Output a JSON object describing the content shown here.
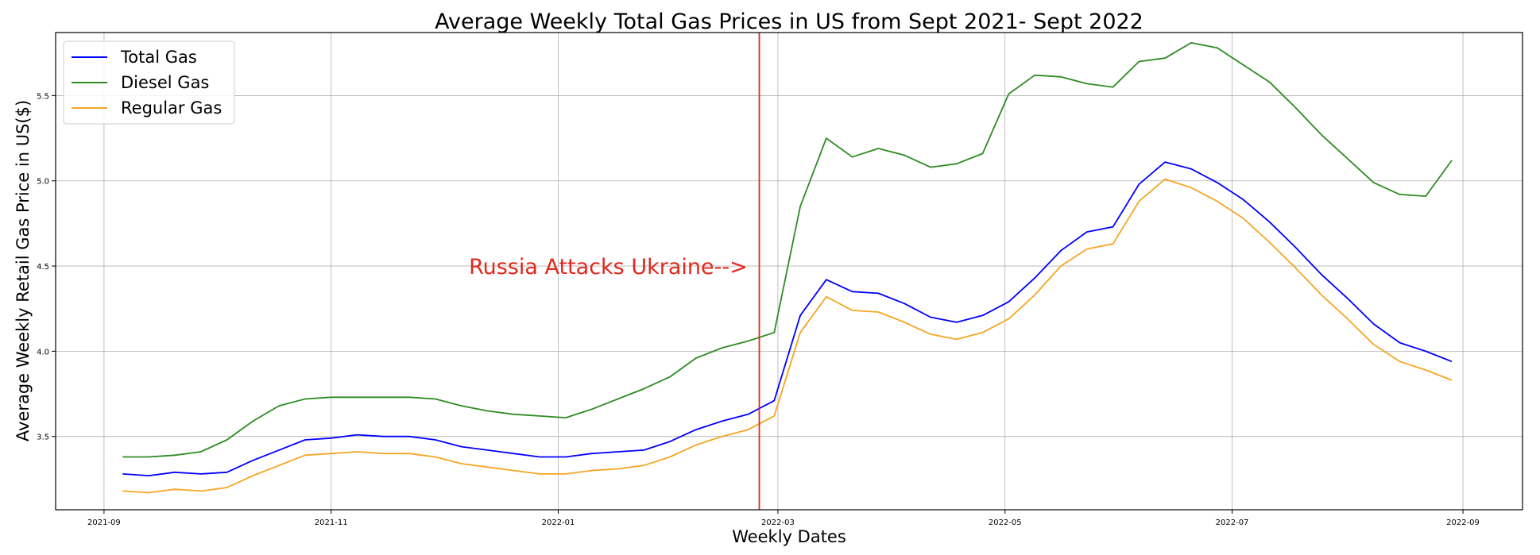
{
  "chart_data": {
    "type": "line",
    "title": "Average Weekly Total Gas Prices in US from Sept 2021- Sept 2022",
    "xlabel": "Weekly Dates",
    "ylabel": "Average Weekly Retail Gas Price in US($)",
    "x_ticks": [
      "2021-09",
      "2021-11",
      "2022-01",
      "2022-03",
      "2022-05",
      "2022-07",
      "2022-09"
    ],
    "y_ticks": [
      "3.5",
      "4.0",
      "4.5",
      "5.0",
      "5.5"
    ],
    "xlim": [
      "2021-08-19",
      "2022-09-17"
    ],
    "ylim": [
      3.07,
      5.87
    ],
    "grid": true,
    "legend_position": "upper left",
    "x": [
      "2021-09-06",
      "2021-09-13",
      "2021-09-20",
      "2021-09-27",
      "2021-10-04",
      "2021-10-11",
      "2021-10-18",
      "2021-10-25",
      "2021-11-01",
      "2021-11-08",
      "2021-11-15",
      "2021-11-22",
      "2021-11-29",
      "2021-12-06",
      "2021-12-13",
      "2021-12-20",
      "2021-12-27",
      "2022-01-03",
      "2022-01-10",
      "2022-01-17",
      "2022-01-24",
      "2022-01-31",
      "2022-02-07",
      "2022-02-14",
      "2022-02-21",
      "2022-02-28",
      "2022-03-07",
      "2022-03-14",
      "2022-03-21",
      "2022-03-28",
      "2022-04-04",
      "2022-04-11",
      "2022-04-18",
      "2022-04-25",
      "2022-05-02",
      "2022-05-09",
      "2022-05-16",
      "2022-05-23",
      "2022-05-30",
      "2022-06-06",
      "2022-06-13",
      "2022-06-20",
      "2022-06-27",
      "2022-07-04",
      "2022-07-11",
      "2022-07-18",
      "2022-07-25",
      "2022-08-01",
      "2022-08-08",
      "2022-08-15",
      "2022-08-22",
      "2022-08-29"
    ],
    "series": [
      {
        "name": "Total Gas",
        "color": "#0000ff",
        "values": [
          3.28,
          3.27,
          3.29,
          3.28,
          3.29,
          3.36,
          3.42,
          3.48,
          3.49,
          3.51,
          3.5,
          3.5,
          3.48,
          3.44,
          3.42,
          3.4,
          3.38,
          3.38,
          3.4,
          3.41,
          3.42,
          3.47,
          3.54,
          3.59,
          3.63,
          3.71,
          4.21,
          4.42,
          4.35,
          4.34,
          4.28,
          4.2,
          4.17,
          4.21,
          4.29,
          4.43,
          4.59,
          4.7,
          4.73,
          4.98,
          5.11,
          5.07,
          4.99,
          4.89,
          4.76,
          4.61,
          4.45,
          4.31,
          4.16,
          4.05,
          4.0,
          3.94
        ]
      },
      {
        "name": "Diesel Gas",
        "color": "#2e8b22",
        "values": [
          3.38,
          3.38,
          3.39,
          3.41,
          3.48,
          3.59,
          3.68,
          3.72,
          3.73,
          3.73,
          3.73,
          3.73,
          3.72,
          3.68,
          3.65,
          3.63,
          3.62,
          3.61,
          3.66,
          3.72,
          3.78,
          3.85,
          3.96,
          4.02,
          4.06,
          4.11,
          4.85,
          5.25,
          5.14,
          5.19,
          5.15,
          5.08,
          5.1,
          5.16,
          5.51,
          5.62,
          5.61,
          5.57,
          5.55,
          5.7,
          5.72,
          5.81,
          5.78,
          5.68,
          5.58,
          5.43,
          5.27,
          5.13,
          4.99,
          4.92,
          4.91,
          5.12
        ]
      },
      {
        "name": "Regular Gas",
        "color": "#f5a623",
        "values": [
          3.18,
          3.17,
          3.19,
          3.18,
          3.2,
          3.27,
          3.33,
          3.39,
          3.4,
          3.41,
          3.4,
          3.4,
          3.38,
          3.34,
          3.32,
          3.3,
          3.28,
          3.28,
          3.3,
          3.31,
          3.33,
          3.38,
          3.45,
          3.5,
          3.54,
          3.62,
          4.11,
          4.32,
          4.24,
          4.23,
          4.17,
          4.1,
          4.07,
          4.11,
          4.19,
          4.33,
          4.5,
          4.6,
          4.63,
          4.88,
          5.01,
          4.96,
          4.88,
          4.78,
          4.64,
          4.49,
          4.33,
          4.19,
          4.04,
          3.94,
          3.89,
          3.83
        ]
      }
    ],
    "vline": {
      "x": "2022-02-24",
      "color": "#e0281e"
    },
    "annotation": {
      "text": "Russia Attacks Ukraine-->",
      "x": "2021-12-08",
      "y": 4.5,
      "color": "#e0281e"
    }
  }
}
